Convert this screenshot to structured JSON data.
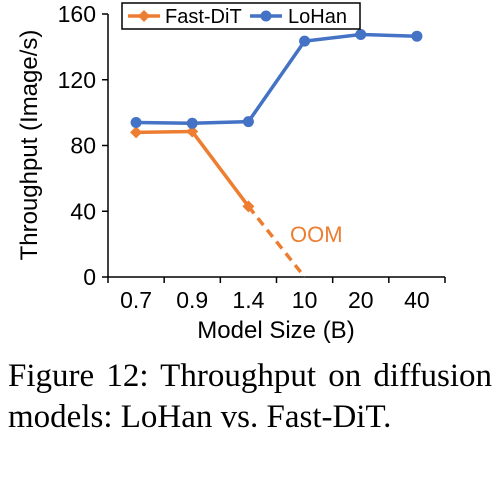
{
  "chart_data": {
    "type": "line",
    "categories": [
      "0.7",
      "0.9",
      "1.4",
      "10",
      "20",
      "40"
    ],
    "series": [
      {
        "name": "Fast-DiT",
        "color": "#ED7D31",
        "marker": "diamond",
        "values": [
          88,
          88.5,
          43,
          null,
          null,
          null
        ]
      },
      {
        "name": "LoHan",
        "color": "#4472C4",
        "marker": "circle",
        "values": [
          94,
          93.5,
          94.5,
          143.5,
          147.5,
          146.5
        ]
      }
    ],
    "oom_projection": {
      "from_index": 2,
      "from_value": 43,
      "to_index": 3,
      "to_value": 0
    },
    "annotation": "OOM",
    "xlabel": "Model Size (B)",
    "ylabel": "Throughput (Image/s)",
    "ylim": [
      0,
      160
    ],
    "yticks": [
      0,
      40,
      80,
      120,
      160
    ],
    "legend_position": "top",
    "grid": false
  },
  "caption": "Figure 12:  Throughput on diffusion models: LoHan vs. Fast-DiT."
}
